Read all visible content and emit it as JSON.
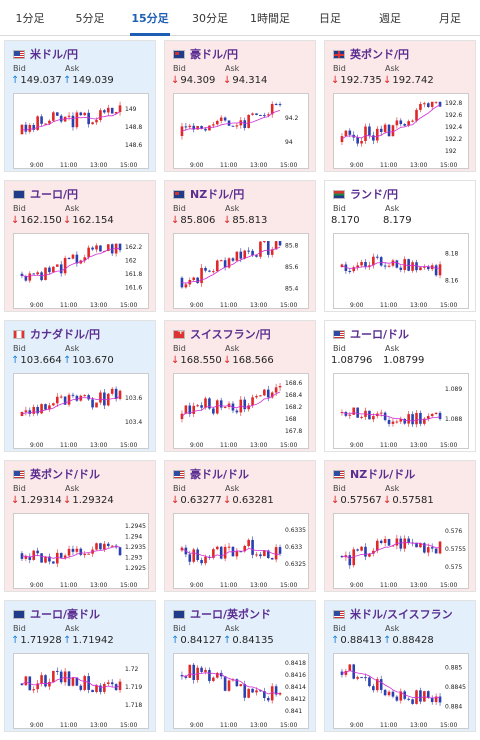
{
  "tabs": [
    {
      "label": "1分足",
      "active": false
    },
    {
      "label": "5分足",
      "active": false
    },
    {
      "label": "15分足",
      "active": true
    },
    {
      "label": "30分足",
      "active": false
    },
    {
      "label": "1時間足",
      "active": false
    },
    {
      "label": "日足",
      "active": false
    },
    {
      "label": "週足",
      "active": false
    },
    {
      "label": "月足",
      "active": false
    }
  ],
  "labels": {
    "bid": "Bid",
    "ask": "Ask"
  },
  "colors": {
    "up_arrow": "#1a7fd4",
    "down_arrow": "#d22222",
    "candle_up": "#e02828",
    "candle_down": "#2a3fb0",
    "ma_line": "#d22ed6",
    "active_tab": "#1e5fb4"
  },
  "cards": [
    {
      "title": "米ドル/円",
      "flag": "us",
      "trend": "up",
      "bid": "149.037",
      "ask": "149.039",
      "chart": {
        "times": [
          "9:00",
          "11:00",
          "13:00",
          "15:00"
        ],
        "ticks": [
          "149",
          "148.8",
          "148.6"
        ],
        "ylim": [
          148.5,
          149.1
        ],
        "open": 148.72,
        "close": 149.04,
        "low": 148.55,
        "high": 149.08
      }
    },
    {
      "title": "豪ドル/円",
      "flag": "au",
      "trend": "down",
      "bid": "94.309",
      "ask": "94.314",
      "chart": {
        "times": [
          "9:00",
          "11:00",
          "13:00",
          "15:00"
        ],
        "ticks": [
          "94.2",
          "94"
        ],
        "ylim": [
          93.9,
          94.35
        ],
        "open": 94.05,
        "close": 94.31,
        "low": 93.95,
        "high": 94.34
      }
    },
    {
      "title": "英ポンド/円",
      "flag": "gb",
      "trend": "down",
      "bid": "192.735",
      "ask": "192.742",
      "chart": {
        "times": [
          "9:00",
          "11:00",
          "13:00",
          "15:00"
        ],
        "ticks": [
          "192.8",
          "192.6",
          "192.4",
          "192.2",
          "192"
        ],
        "ylim": [
          191.95,
          192.85
        ],
        "open": 192.15,
        "close": 192.74,
        "low": 192.0,
        "high": 192.82
      }
    },
    {
      "title": "ユーロ/円",
      "flag": "eu",
      "trend": "down",
      "bid": "162.150",
      "ask": "162.154",
      "chart": {
        "times": [
          "9:00",
          "11:00",
          "13:00",
          "15:00"
        ],
        "ticks": [
          "162.2",
          "162",
          "161.8",
          "161.6"
        ],
        "ylim": [
          161.5,
          162.3
        ],
        "open": 161.8,
        "close": 162.15,
        "low": 161.6,
        "high": 162.25
      }
    },
    {
      "title": "NZドル/円",
      "flag": "nz",
      "trend": "down",
      "bid": "85.806",
      "ask": "85.813",
      "chart": {
        "times": [
          "9:00",
          "11:00",
          "13:00",
          "15:00"
        ],
        "ticks": [
          "85.8",
          "85.6",
          "85.4"
        ],
        "ylim": [
          85.35,
          85.85
        ],
        "open": 85.5,
        "close": 85.8,
        "low": 85.4,
        "high": 85.84
      }
    },
    {
      "title": "ランド/円",
      "flag": "za",
      "trend": "flat",
      "bid": "8.170",
      "ask": "8.179",
      "chart": {
        "times": [
          "9:00",
          "11:00",
          "13:00",
          "15:00"
        ],
        "ticks": [
          "8.18",
          "8.16"
        ],
        "ylim": [
          8.15,
          8.19
        ],
        "open": 8.17,
        "close": 8.172,
        "low": 8.152,
        "high": 8.186
      }
    },
    {
      "title": "カナダドル/円",
      "flag": "ca",
      "trend": "up",
      "bid": "103.664",
      "ask": "103.670",
      "chart": {
        "times": [
          "9:00",
          "11:00",
          "13:00",
          "15:00"
        ],
        "ticks": [
          "103.6",
          "103.4"
        ],
        "ylim": [
          103.3,
          103.75
        ],
        "open": 103.45,
        "close": 103.66,
        "low": 103.33,
        "high": 103.72
      }
    },
    {
      "title": "スイスフラン/円",
      "flag": "ch",
      "trend": "down",
      "bid": "168.550",
      "ask": "168.566",
      "chart": {
        "times": [
          "9:00",
          "11:00",
          "13:00",
          "15:00"
        ],
        "ticks": [
          "168.6",
          "168.4",
          "168.2",
          "168",
          "167.8"
        ],
        "ylim": [
          167.75,
          168.65
        ],
        "open": 168.0,
        "close": 168.55,
        "low": 167.82,
        "high": 168.6
      }
    },
    {
      "title": "ユーロ/ドル",
      "flag": "us",
      "trend": "flat",
      "bid": "1.08796",
      "ask": "1.08799",
      "chart": {
        "times": [
          "9:00",
          "11:00",
          "13:00",
          "15:00"
        ],
        "ticks": [
          "1.089",
          "1.088"
        ],
        "ylim": [
          1.0875,
          1.0893
        ],
        "open": 1.0882,
        "close": 1.088,
        "low": 1.0876,
        "high": 1.0891
      }
    },
    {
      "title": "英ポンド/ドル",
      "flag": "us",
      "trend": "down",
      "bid": "1.29314",
      "ask": "1.29324",
      "chart": {
        "times": [
          "9:00",
          "11:00",
          "13:00",
          "15:00"
        ],
        "ticks": [
          "1.2945",
          "1.294",
          "1.2935",
          "1.293",
          "1.2925"
        ],
        "ylim": [
          1.2922,
          1.2948
        ],
        "open": 1.2932,
        "close": 1.2931,
        "low": 1.2924,
        "high": 1.2946
      }
    },
    {
      "title": "豪ドル/ドル",
      "flag": "us",
      "trend": "down",
      "bid": "0.63277",
      "ask": "0.63281",
      "chart": {
        "times": [
          "9:00",
          "11:00",
          "13:00",
          "15:00"
        ],
        "ticks": [
          "0.6335",
          "0.633",
          "0.6325"
        ],
        "ylim": [
          0.6322,
          0.6338
        ],
        "open": 0.6329,
        "close": 0.6328,
        "low": 0.6323,
        "high": 0.6337
      }
    },
    {
      "title": "NZドル/ドル",
      "flag": "us",
      "trend": "down",
      "bid": "0.57567",
      "ask": "0.57581",
      "chart": {
        "times": [
          "9:00",
          "11:00",
          "13:00",
          "15:00"
        ],
        "ticks": [
          "0.576",
          "0.5755",
          "0.575"
        ],
        "ylim": [
          0.5748,
          0.5763
        ],
        "open": 0.5753,
        "close": 0.5757,
        "low": 0.5749,
        "high": 0.5762
      }
    },
    {
      "title": "ユーロ/豪ドル",
      "flag": "eu",
      "trend": "up",
      "bid": "1.71928",
      "ask": "1.71942",
      "chart": {
        "times": [
          "9:00",
          "11:00",
          "13:00",
          "15:00"
        ],
        "ticks": [
          "1.72",
          "1.719",
          "1.718"
        ],
        "ylim": [
          1.7175,
          1.7205
        ],
        "open": 1.7192,
        "close": 1.7193,
        "low": 1.7178,
        "high": 1.7203
      }
    },
    {
      "title": "ユーロ/英ポンド",
      "flag": "eu",
      "trend": "up",
      "bid": "0.84127",
      "ask": "0.84135",
      "chart": {
        "times": [
          "9:00",
          "11:00",
          "13:00",
          "15:00"
        ],
        "ticks": [
          "0.8418",
          "0.8416",
          "0.8414",
          "0.8412",
          "0.841"
        ],
        "ylim": [
          0.84095,
          0.84185
        ],
        "open": 0.8416,
        "close": 0.8413,
        "low": 0.841,
        "high": 0.8418
      }
    },
    {
      "title": "米ドル/スイスフラン",
      "flag": "us",
      "trend": "up",
      "bid": "0.88413",
      "ask": "0.88428",
      "chart": {
        "times": [
          "9:00",
          "11:00",
          "13:00",
          "15:00"
        ],
        "ticks": [
          "0.885",
          "0.8845",
          "0.884"
        ],
        "ylim": [
          0.8838,
          0.8852
        ],
        "open": 0.8849,
        "close": 0.8841,
        "low": 0.8839,
        "high": 0.8851
      }
    }
  ]
}
